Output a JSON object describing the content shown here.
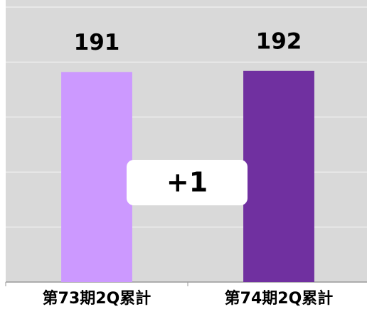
{
  "chart_data": {
    "type": "bar",
    "categories": [
      "第73期2Q累計",
      "第74期2Q累計"
    ],
    "series": [
      {
        "name": null,
        "colors": [
          "#cc99ff",
          "#7030a0"
        ],
        "values": [
          191,
          192
        ]
      }
    ],
    "ylim": [
      0,
      250
    ],
    "yticks": [
      0,
      50,
      100,
      150,
      200,
      250
    ],
    "grid": true,
    "annotation": "+1"
  }
}
